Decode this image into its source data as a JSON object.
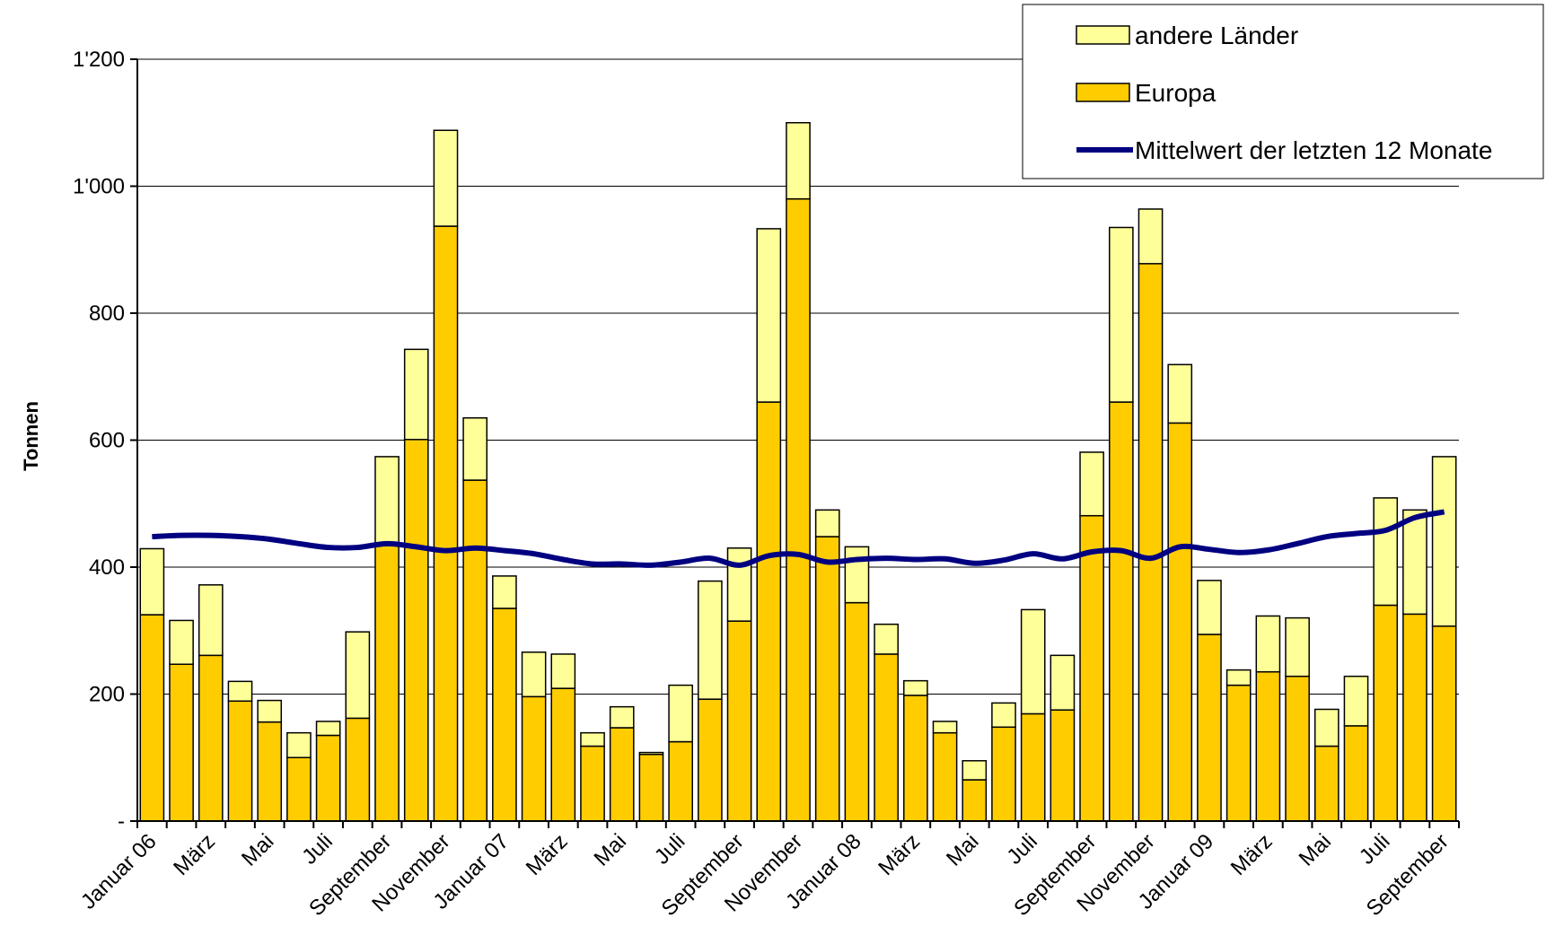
{
  "chart_data": {
    "type": "bar",
    "stacked": true,
    "title": "",
    "xlabel": "",
    "ylabel": "Tonnen",
    "ylim": [
      0,
      1200
    ],
    "yticks": [
      0,
      200,
      400,
      600,
      800,
      1000,
      1200
    ],
    "ytick_labels": [
      "-",
      "200",
      "400",
      "600",
      "800",
      "1'000",
      "1'200"
    ],
    "grid": "horizontal",
    "legend_position": "top-right",
    "x_tick_labels": [
      {
        "index": 0,
        "label": "Januar 06"
      },
      {
        "index": 2,
        "label": "März"
      },
      {
        "index": 4,
        "label": "Mai"
      },
      {
        "index": 6,
        "label": "Juli"
      },
      {
        "index": 8,
        "label": "September"
      },
      {
        "index": 10,
        "label": "November"
      },
      {
        "index": 12,
        "label": "Januar 07"
      },
      {
        "index": 14,
        "label": "März"
      },
      {
        "index": 16,
        "label": "Mai"
      },
      {
        "index": 18,
        "label": "Juli"
      },
      {
        "index": 20,
        "label": "September"
      },
      {
        "index": 22,
        "label": "November"
      },
      {
        "index": 24,
        "label": "Januar 08"
      },
      {
        "index": 26,
        "label": "März"
      },
      {
        "index": 28,
        "label": "Mai"
      },
      {
        "index": 30,
        "label": "Juli"
      },
      {
        "index": 32,
        "label": "September"
      },
      {
        "index": 34,
        "label": "November"
      },
      {
        "index": 36,
        "label": "Januar 09"
      },
      {
        "index": 38,
        "label": "März"
      },
      {
        "index": 40,
        "label": "Mai"
      },
      {
        "index": 42,
        "label": "Juli"
      },
      {
        "index": 44,
        "label": "September"
      }
    ],
    "series": [
      {
        "name": "Europa",
        "color": "#FFCC00",
        "values": [
          325,
          247,
          261,
          189,
          156,
          100,
          135,
          162,
          435,
          601,
          937,
          537,
          335,
          196,
          209,
          118,
          147,
          105,
          125,
          192,
          315,
          660,
          980,
          448,
          344,
          263,
          198,
          139,
          65,
          148,
          169,
          175,
          481,
          660,
          878,
          627,
          294,
          214,
          235,
          228,
          118,
          150,
          340,
          326,
          307
        ]
      },
      {
        "name": "andere Länder",
        "color": "#FFFF99",
        "values": [
          104,
          69,
          111,
          31,
          34,
          39,
          22,
          136,
          139,
          142,
          151,
          98,
          51,
          70,
          54,
          21,
          33,
          3,
          89,
          186,
          115,
          273,
          120,
          42,
          88,
          47,
          23,
          18,
          30,
          38,
          164,
          86,
          100,
          275,
          86,
          92,
          85,
          24,
          88,
          92,
          58,
          78,
          169,
          164,
          267
        ]
      },
      {
        "name": "Mittelwert der letzten 12 Monate",
        "type": "line",
        "color": "#000080",
        "values": [
          448,
          450,
          450,
          448,
          444,
          437,
          431,
          431,
          437,
          432,
          426,
          430,
          426,
          421,
          412,
          405,
          405,
          403,
          408,
          414,
          403,
          418,
          420,
          408,
          412,
          414,
          412,
          413,
          406,
          411,
          421,
          413,
          424,
          426,
          414,
          432,
          428,
          423,
          427,
          437,
          448,
          453,
          458,
          478,
          487
        ]
      }
    ],
    "legend": [
      {
        "label": "andere Länder",
        "kind": "bar",
        "color": "#FFFF99"
      },
      {
        "label": "Europa",
        "kind": "bar",
        "color": "#FFCC00"
      },
      {
        "label": "Mittelwert der letzten 12 Monate",
        "kind": "line",
        "color": "#000080"
      }
    ]
  }
}
